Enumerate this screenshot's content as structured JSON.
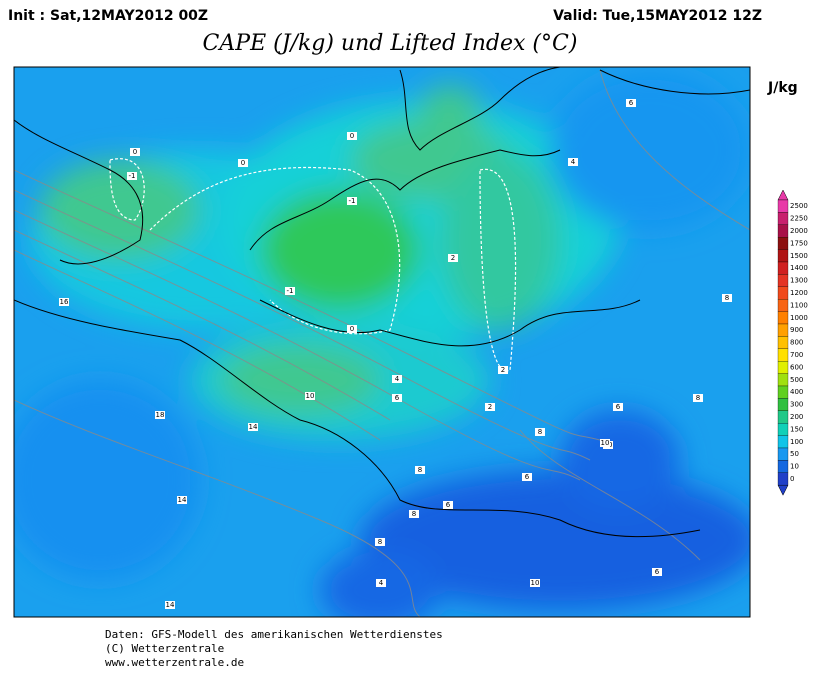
{
  "header": {
    "init": "Init : Sat,12MAY2012 00Z",
    "valid": "Valid: Tue,15MAY2012 12Z",
    "title": "CAPE (J/kg) und Lifted Index (°C)"
  },
  "colorbar": {
    "unit": "J/kg",
    "levels": [
      {
        "label": "2500",
        "color": "#e83aa8"
      },
      {
        "label": "2250",
        "color": "#c8206e"
      },
      {
        "label": "2000",
        "color": "#a81048"
      },
      {
        "label": "1750",
        "color": "#8c1010"
      },
      {
        "label": "1500",
        "color": "#b01414"
      },
      {
        "label": "1400",
        "color": "#d02020"
      },
      {
        "label": "1300",
        "color": "#e43424"
      },
      {
        "label": "1200",
        "color": "#f04a1c"
      },
      {
        "label": "1100",
        "color": "#f86414"
      },
      {
        "label": "1000",
        "color": "#ff8000"
      },
      {
        "label": "900",
        "color": "#ffa000"
      },
      {
        "label": "800",
        "color": "#ffc000"
      },
      {
        "label": "700",
        "color": "#ffe000"
      },
      {
        "label": "600",
        "color": "#e0f000"
      },
      {
        "label": "500",
        "color": "#a0e010"
      },
      {
        "label": "400",
        "color": "#60d020"
      },
      {
        "label": "300",
        "color": "#30c040"
      },
      {
        "label": "200",
        "color": "#20c888"
      },
      {
        "label": "150",
        "color": "#10d0b8"
      },
      {
        "label": "100",
        "color": "#10c4e8"
      },
      {
        "label": "50",
        "color": "#1898f0"
      },
      {
        "label": "10",
        "color": "#1468e0"
      },
      {
        "label": "0",
        "color": "#2040c8"
      }
    ]
  },
  "map": {
    "contour_labels": [
      "0",
      "-1",
      "0",
      "-1",
      "0",
      "-1",
      "2",
      "0",
      "4",
      "2",
      "6",
      "8",
      "10",
      "16",
      "18",
      "14",
      "14",
      "14",
      "8",
      "6",
      "8",
      "10",
      "10",
      "6",
      "8",
      "6",
      "8",
      "10",
      "4",
      "6",
      "4",
      "2",
      "6",
      "8",
      "0",
      "-1"
    ]
  },
  "footer": {
    "lines": [
      "Daten: GFS-Modell des amerikanischen Wetterdienstes",
      "(C) Wetterzentrale",
      "www.wetterzentrale.de"
    ]
  }
}
